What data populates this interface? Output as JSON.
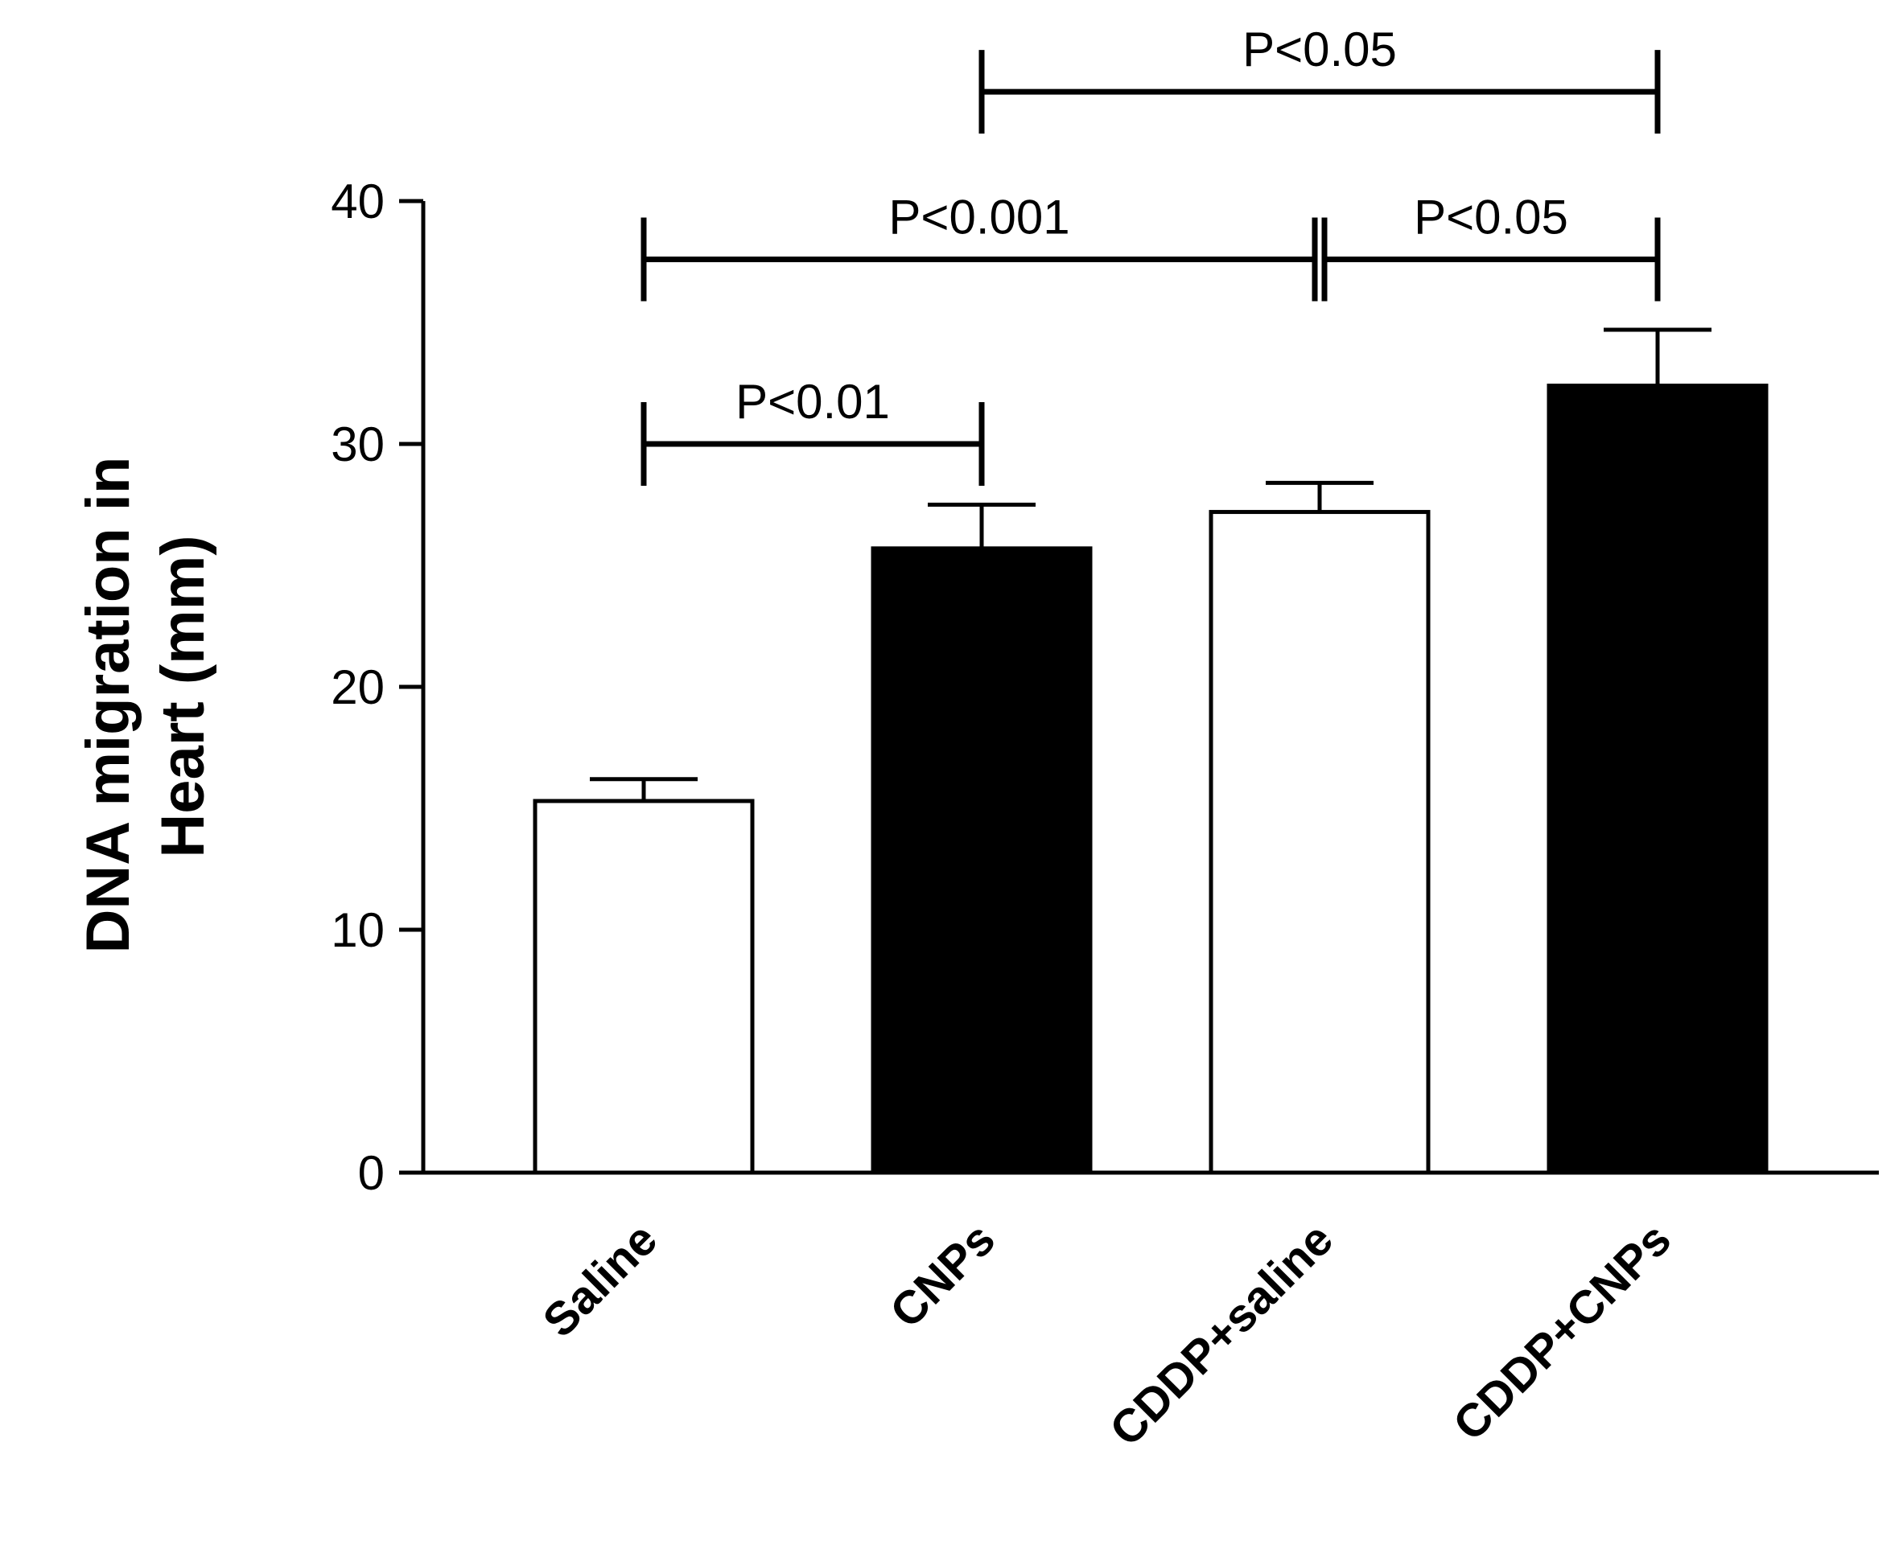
{
  "chart_data": {
    "type": "bar",
    "title": "",
    "xlabel": "",
    "ylabel_lines": [
      "DNA migration in",
      "Heart (mm)"
    ],
    "categories": [
      "Saline",
      "CNPs",
      "CDDP+saline",
      "CDDP+CNPs"
    ],
    "values": [
      15.3,
      25.7,
      27.2,
      32.4
    ],
    "errors": [
      0.9,
      1.8,
      1.2,
      2.3
    ],
    "fill_colors": [
      "#ffffff",
      "#000000",
      "#ffffff",
      "#000000"
    ],
    "ylim": [
      0,
      40
    ],
    "yticks": [
      0,
      10,
      20,
      30,
      40
    ],
    "ytick_labels": [
      "0",
      "10",
      "20",
      "30",
      "40"
    ],
    "grid": false,
    "significance": [
      {
        "from": 0,
        "to": 1,
        "label": "P<0.01",
        "level": 30
      },
      {
        "from": 0,
        "to": 2,
        "label": "P<0.001",
        "level": 37.6
      },
      {
        "from": 2,
        "to": 3,
        "label": "P<0.05",
        "level": 37.6
      },
      {
        "from": 1,
        "to": 3,
        "label": "P<0.05",
        "level": 44.5
      }
    ]
  }
}
